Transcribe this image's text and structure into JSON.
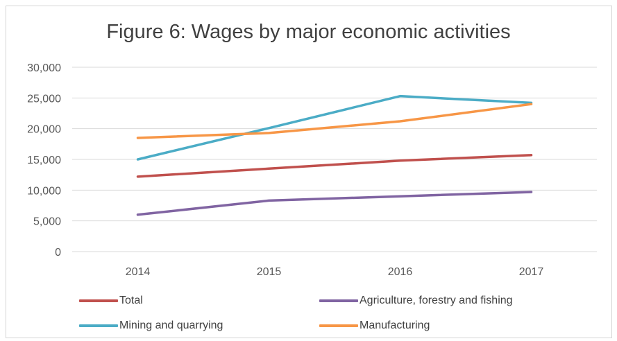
{
  "chart_data": {
    "type": "line",
    "title": "Figure 6: Wages by major economic activities",
    "categories": [
      "2014",
      "2015",
      "2016",
      "2017"
    ],
    "ylim": [
      0,
      30000
    ],
    "yticks": [
      0,
      5000,
      10000,
      15000,
      20000,
      25000,
      30000
    ],
    "ytick_labels": [
      "0",
      "5,000",
      "10,000",
      "15,000",
      "20,000",
      "25,000",
      "30,000"
    ],
    "grid": true,
    "legend_position": "bottom",
    "series": [
      {
        "name": "Total",
        "color": "#c0504d",
        "values": [
          12200,
          13500,
          14800,
          15700
        ]
      },
      {
        "name": "Agriculture, forestry and fishing",
        "color": "#8064a2",
        "values": [
          6000,
          8300,
          9000,
          9700
        ]
      },
      {
        "name": "Mining and quarrying",
        "color": "#4bacc6",
        "values": [
          15000,
          20100,
          25300,
          24200
        ]
      },
      {
        "name": "Manufacturing",
        "color": "#f79646",
        "values": [
          18500,
          19300,
          21200,
          24000
        ]
      }
    ]
  }
}
